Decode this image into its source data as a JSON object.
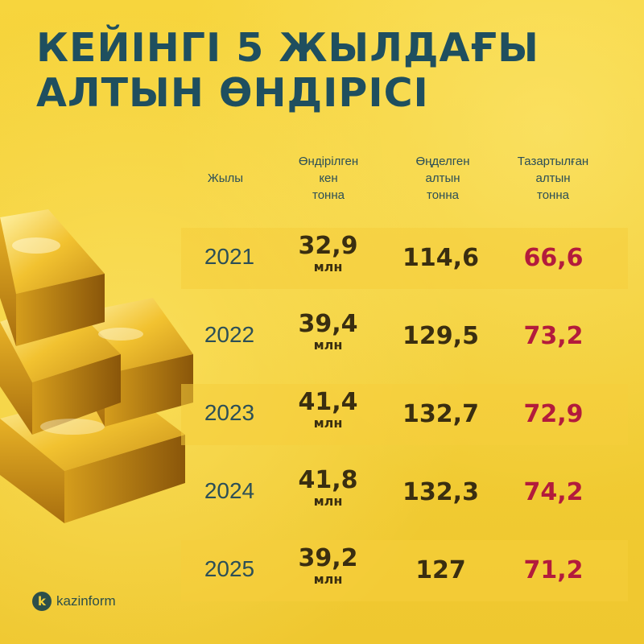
{
  "title": {
    "line1": "КЕЙІНГІ 5 ЖЫЛДАҒЫ",
    "line2": "АЛТЫН ӨНДІРІСІ"
  },
  "headers": {
    "years": "Жылы",
    "ore": [
      "Өндірілген",
      "кен",
      "тонна"
    ],
    "processed": [
      "Өңделген",
      "алтын",
      "тонна"
    ],
    "refined": [
      "Тазартылған",
      "алтын",
      "тонна"
    ]
  },
  "rows": [
    {
      "year": "2021",
      "ore": "32,9",
      "ore_unit": "млн",
      "processed": "114,6",
      "refined": "66,6"
    },
    {
      "year": "2022",
      "ore": "39,4",
      "ore_unit": "млн",
      "processed": "129,5",
      "refined": "73,2"
    },
    {
      "year": "2023",
      "ore": "41,4",
      "ore_unit": "млн",
      "processed": "132,7",
      "refined": "72,9"
    },
    {
      "year": "2024",
      "ore": "41,8",
      "ore_unit": "млн",
      "processed": "132,3",
      "refined": "74,2"
    },
    {
      "year": "2025",
      "ore": "39,2",
      "ore_unit": "млн",
      "processed": "127",
      "refined": "71,2"
    }
  ],
  "logo": {
    "badge": "k",
    "text": "kazinform"
  },
  "colors": {
    "background": "#f6d23b",
    "title": "#1f4f5f",
    "refined_value": "#b31b3c",
    "value": "#3a2e10"
  },
  "illustration": "gold-bars"
}
